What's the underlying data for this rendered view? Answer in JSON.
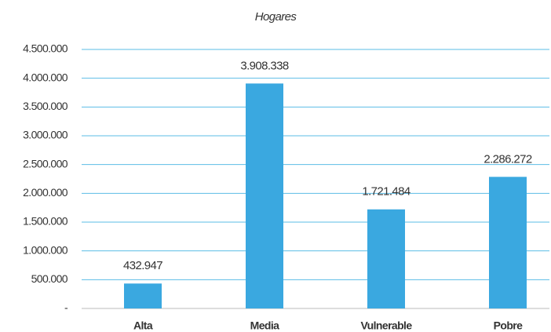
{
  "chart_data": {
    "type": "bar",
    "title": "Hogares",
    "categories": [
      "Alta",
      "Media",
      "Vulnerable",
      "Pobre"
    ],
    "values": [
      432947,
      3908338,
      1721484,
      2286272
    ],
    "value_labels": [
      "432.947",
      "3.908.338",
      "1.721.484",
      "2.286.272"
    ],
    "color": "#3aa8e0",
    "ylim": [
      0,
      4500000
    ],
    "yticks": [
      {
        "value": 0,
        "label": "-"
      },
      {
        "value": 500000,
        "label": "500.000"
      },
      {
        "value": 1000000,
        "label": "1.000.000"
      },
      {
        "value": 1500000,
        "label": "1.500.000"
      },
      {
        "value": 2000000,
        "label": "2.000.000"
      },
      {
        "value": 2500000,
        "label": "2.500.000"
      },
      {
        "value": 3000000,
        "label": "3.000.000"
      },
      {
        "value": 3500000,
        "label": "3.500.000"
      },
      {
        "value": 4000000,
        "label": "4.000.000"
      },
      {
        "value": 4500000,
        "label": "4.500.000"
      }
    ],
    "grid": true
  }
}
